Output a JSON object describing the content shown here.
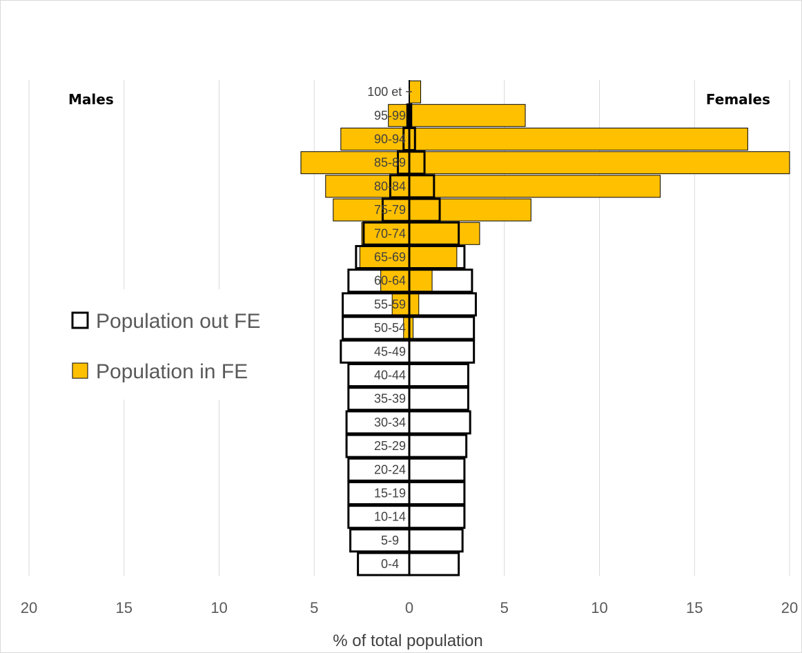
{
  "chart_data": {
    "type": "bar",
    "orientation": "horizontal",
    "subtype": "population pyramid",
    "categories": [
      "0-4",
      "5-9",
      "10-14",
      "15-19",
      "20-24",
      "25-29",
      "30-34",
      "35-39",
      "40-44",
      "45-49",
      "50-54",
      "55-59",
      "60-64",
      "65-69",
      "70-74",
      "75-79",
      "80-84",
      "85-89",
      "90-94",
      "95-99",
      "100 et +"
    ],
    "series": [
      {
        "name": "Population out FE",
        "color": "#ffffff",
        "stroke": "#000000",
        "males": [
          2.7,
          3.1,
          3.2,
          3.2,
          3.2,
          3.3,
          3.3,
          3.2,
          3.2,
          3.6,
          3.5,
          3.5,
          3.2,
          2.8,
          2.4,
          1.4,
          1.0,
          0.6,
          0.3,
          0.1,
          0.0
        ],
        "females": [
          2.6,
          2.8,
          2.9,
          2.9,
          2.9,
          3.0,
          3.2,
          3.1,
          3.1,
          3.4,
          3.4,
          3.5,
          3.3,
          2.9,
          2.6,
          1.6,
          1.3,
          0.8,
          0.3,
          0.1,
          0.0
        ]
      },
      {
        "name": "Population in FE",
        "color": "#ffc000",
        "stroke": "#000000",
        "males": [
          0,
          0,
          0,
          0,
          0,
          0,
          0,
          0,
          0,
          0,
          0.3,
          0.9,
          1.5,
          2.6,
          2.5,
          4.0,
          4.4,
          5.7,
          3.6,
          1.1,
          0.0
        ],
        "females": [
          0,
          0,
          0,
          0,
          0,
          0,
          0,
          0,
          0,
          0,
          0.2,
          0.5,
          1.2,
          2.5,
          3.7,
          6.4,
          13.2,
          20.0,
          17.8,
          6.1,
          0.6
        ]
      }
    ],
    "side_labels": {
      "left": "Males",
      "right": "Females"
    },
    "xlabel": "% of total population",
    "xlim": [
      -20,
      20
    ],
    "xticks": [
      -20,
      -15,
      -10,
      -5,
      0,
      5,
      10,
      15,
      20
    ],
    "xtick_labels": [
      "20",
      "15",
      "10",
      "5",
      "0",
      "5",
      "10",
      "15",
      "20"
    ],
    "grid": "vertical",
    "legend_position": "left-middle",
    "legend": [
      "Population out FE",
      "Population in FE"
    ]
  }
}
